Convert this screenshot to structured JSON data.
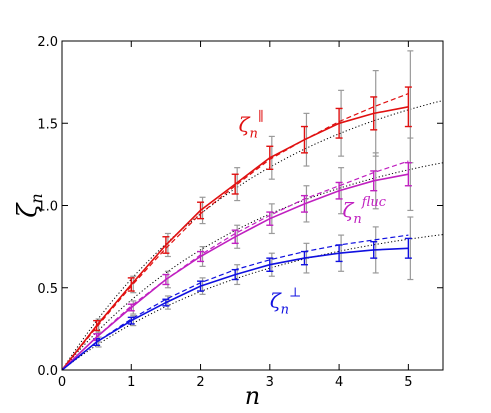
{
  "chart_data": {
    "type": "line",
    "xlabel": "n",
    "ylabel": "ζ",
    "ylabel_sub": "n",
    "xlim": [
      0,
      5.5
    ],
    "ylim": [
      0,
      2.0
    ],
    "xticks": [
      "0",
      "1",
      "2",
      "3",
      "4",
      "5"
    ],
    "yticks": [
      "0.0",
      "0.5",
      "1.0",
      "1.5",
      "2.0"
    ],
    "grid": false,
    "legend": "none",
    "series": [
      {
        "color": "#e01010",
        "x": [
          0,
          0.5,
          1,
          1.5,
          2,
          2.5,
          3,
          3.5,
          4,
          4.5,
          5
        ],
        "y": [
          0,
          0.27,
          0.52,
          0.76,
          0.97,
          1.13,
          1.29,
          1.4,
          1.5,
          1.56,
          1.6
        ],
        "dashed": [
          0,
          0.26,
          0.51,
          0.74,
          0.95,
          1.12,
          1.28,
          1.4,
          1.51,
          1.6,
          1.68
        ],
        "err_color": [
          0.03,
          0.04,
          0.05,
          0.05,
          0.06,
          0.07,
          0.08,
          0.09,
          0.1,
          0.12
        ],
        "err_grey": [
          0.04,
          0.05,
          0.07,
          0.08,
          0.1,
          0.13,
          0.16,
          0.2,
          0.26,
          0.34
        ],
        "label_main": "ζ",
        "label_sub": "n",
        "label_sup": "∥",
        "label_x": 2.55,
        "label_y": 1.45
      },
      {
        "color": "#c020c0",
        "x": [
          0,
          0.5,
          1,
          1.5,
          2,
          2.5,
          3,
          3.5,
          4,
          4.5,
          5
        ],
        "y": [
          0,
          0.2,
          0.38,
          0.55,
          0.69,
          0.81,
          0.92,
          1.01,
          1.09,
          1.15,
          1.19
        ],
        "dashed": [
          0,
          0.2,
          0.39,
          0.55,
          0.7,
          0.83,
          0.94,
          1.04,
          1.12,
          1.2,
          1.27
        ],
        "err_color": [
          0.02,
          0.02,
          0.03,
          0.03,
          0.04,
          0.04,
          0.05,
          0.05,
          0.06,
          0.07
        ],
        "err_grey": [
          0.03,
          0.04,
          0.05,
          0.06,
          0.07,
          0.09,
          0.11,
          0.14,
          0.17,
          0.22
        ],
        "label_main": "ζ",
        "label_sub": "n",
        "label_sup": "fluc",
        "label_x": 4.05,
        "label_y": 0.93
      },
      {
        "color": "#1010e0",
        "x": [
          0,
          0.5,
          1,
          1.5,
          2,
          2.5,
          3,
          3.5,
          4,
          4.5,
          5
        ],
        "y": [
          0,
          0.17,
          0.3,
          0.41,
          0.51,
          0.58,
          0.64,
          0.68,
          0.71,
          0.73,
          0.74
        ],
        "dashed": [
          0,
          0.17,
          0.31,
          0.43,
          0.53,
          0.61,
          0.67,
          0.72,
          0.76,
          0.79,
          0.82
        ],
        "err_color": [
          0.02,
          0.02,
          0.02,
          0.03,
          0.03,
          0.04,
          0.04,
          0.05,
          0.05,
          0.06
        ],
        "err_grey": [
          0.03,
          0.03,
          0.04,
          0.05,
          0.06,
          0.07,
          0.09,
          0.11,
          0.14,
          0.19
        ],
        "label_main": "ζ",
        "label_sub": "n",
        "label_sup": "⊥",
        "label_x": 3.0,
        "label_y": 0.38
      }
    ],
    "model_curves": [
      {
        "color": "#000000",
        "amplitude": 1.95,
        "n_star": 3.0
      },
      {
        "color": "#000000",
        "amplitude": 1.5,
        "n_star": 3.0
      },
      {
        "color": "#000000",
        "amplitude": 0.98,
        "n_star": 3.0
      }
    ]
  }
}
